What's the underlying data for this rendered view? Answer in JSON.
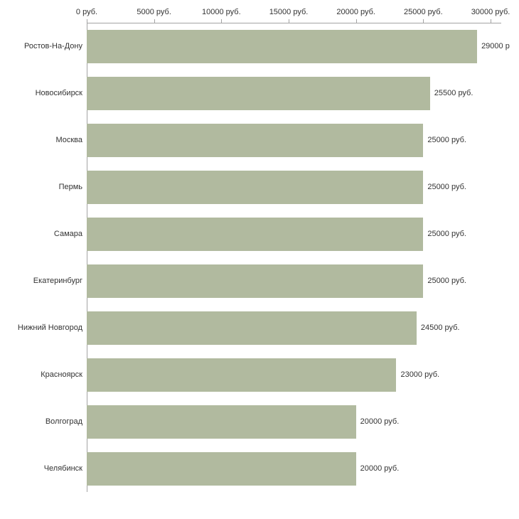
{
  "chart_data": {
    "type": "bar",
    "orientation": "horizontal",
    "title": "",
    "xlabel": "",
    "ylabel": "",
    "categories": [
      "Ростов-На-Дону",
      "Новосибирск",
      "Москва",
      "Пермь",
      "Самара",
      "Екатеринбург",
      "Нижний Новгород",
      "Красноярск",
      "Волгоград",
      "Челябинск"
    ],
    "values": [
      29000,
      25500,
      25000,
      25000,
      25000,
      25000,
      24500,
      23000,
      20000,
      20000
    ],
    "value_labels": [
      "29000 р",
      "25500 руб.",
      "25000 руб.",
      "25000 руб.",
      "25000 руб.",
      "25000 руб.",
      "24500 руб.",
      "23000 руб.",
      "20000 руб.",
      "20000 руб."
    ],
    "x_ticks": [
      0,
      5000,
      10000,
      15000,
      20000,
      25000,
      30000
    ],
    "x_tick_labels": [
      "0 руб.",
      "5000 руб.",
      "10000 руб.",
      "15000 руб.",
      "20000 руб.",
      "25000 руб.",
      "30000 руб."
    ],
    "xlim": [
      0,
      30000
    ],
    "grid": false,
    "legend": false,
    "axis_position": "top",
    "bar_color": "#b1ba9f",
    "axis_color": "#a3a3a3",
    "text_color": "#333333"
  }
}
